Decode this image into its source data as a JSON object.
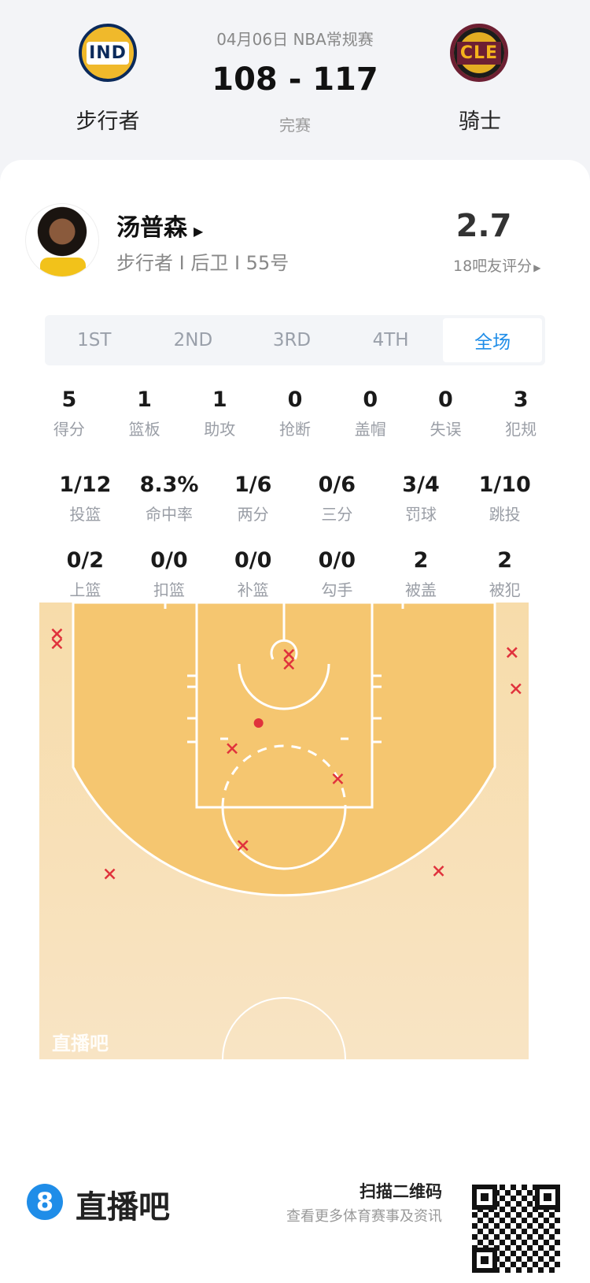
{
  "match": {
    "date_league": "04月06日 NBA常规赛",
    "score": "108 - 117",
    "status": "完赛",
    "home": {
      "name": "步行者",
      "abbr": "IND"
    },
    "away": {
      "name": "骑士",
      "abbr": "CLE"
    }
  },
  "player": {
    "name": "汤普森",
    "info": "步行者 I 后卫 I 55号",
    "rating": "2.7",
    "rating_label": "18吧友评分"
  },
  "tabs": [
    {
      "label": "1ST"
    },
    {
      "label": "2ND"
    },
    {
      "label": "3RD"
    },
    {
      "label": "4TH"
    },
    {
      "label": "全场",
      "active": true
    }
  ],
  "stats": [
    [
      {
        "v": "5",
        "l": "得分"
      },
      {
        "v": "1",
        "l": "篮板"
      },
      {
        "v": "1",
        "l": "助攻"
      },
      {
        "v": "0",
        "l": "抢断"
      },
      {
        "v": "0",
        "l": "盖帽"
      },
      {
        "v": "0",
        "l": "失误"
      },
      {
        "v": "3",
        "l": "犯规"
      }
    ],
    [
      {
        "v": "1/12",
        "l": "投篮"
      },
      {
        "v": "8.3%",
        "l": "命中率"
      },
      {
        "v": "1/6",
        "l": "两分"
      },
      {
        "v": "0/6",
        "l": "三分"
      },
      {
        "v": "3/4",
        "l": "罚球"
      },
      {
        "v": "1/10",
        "l": "跳投"
      }
    ],
    [
      {
        "v": "0/2",
        "l": "上篮"
      },
      {
        "v": "0/0",
        "l": "扣篮"
      },
      {
        "v": "0/0",
        "l": "补篮"
      },
      {
        "v": "0/0",
        "l": "勾手"
      },
      {
        "v": "2",
        "l": "被盖"
      },
      {
        "v": "2",
        "l": "被犯"
      }
    ]
  ],
  "shot_chart": {
    "watermark": "直播吧",
    "colors": {
      "miss": "#e0323c",
      "make": "#e0323c"
    },
    "shots": [
      {
        "x": -23.2,
        "y": 3.2,
        "made": false
      },
      {
        "x": -23.2,
        "y": 4.2,
        "made": false
      },
      {
        "x": 0.5,
        "y": 5.3,
        "made": false
      },
      {
        "x": 0.5,
        "y": 6.3,
        "made": false
      },
      {
        "x": 23.3,
        "y": 5.1,
        "made": false
      },
      {
        "x": 23.7,
        "y": 8.8,
        "made": false
      },
      {
        "x": -2.6,
        "y": 12.3,
        "made": true
      },
      {
        "x": -5.3,
        "y": 14.9,
        "made": false
      },
      {
        "x": 5.5,
        "y": 18.0,
        "made": false
      },
      {
        "x": -4.2,
        "y": 24.8,
        "made": false
      },
      {
        "x": -17.8,
        "y": 27.7,
        "made": false
      },
      {
        "x": 15.8,
        "y": 27.4,
        "made": false
      }
    ]
  },
  "footer": {
    "brand": "直播吧",
    "brand_icon": "8",
    "qr_title": "扫描二维码",
    "qr_sub": "查看更多体育赛事及资讯"
  }
}
